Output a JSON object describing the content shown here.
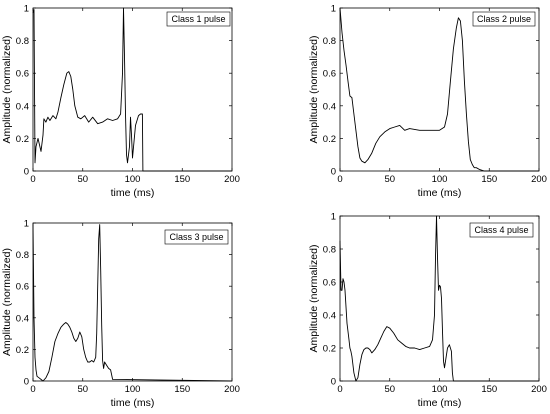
{
  "chart_data": [
    {
      "type": "line",
      "legend": "Class 1 pulse",
      "xlabel": "time (ms)",
      "ylabel": "Amplitude (normalized)",
      "xlim": [
        0,
        200
      ],
      "ylim": [
        0,
        1
      ],
      "xticks": [
        "0",
        "50",
        "100",
        "150",
        "200"
      ],
      "yticks": [
        "0",
        "0.2",
        "0.4",
        "0.6",
        "0.8",
        "1"
      ],
      "x": [
        0,
        1,
        2,
        3,
        5,
        8,
        10,
        11,
        13,
        15,
        17,
        20,
        23,
        25,
        28,
        31,
        34,
        36,
        38,
        40,
        42,
        45,
        48,
        52,
        56,
        60,
        65,
        70,
        75,
        80,
        85,
        88,
        90,
        91,
        92,
        93,
        94,
        95,
        97,
        98,
        99,
        100,
        103,
        106,
        108,
        110,
        110.5,
        200
      ],
      "y": [
        0.97,
        0.99,
        0.05,
        0.15,
        0.2,
        0.12,
        0.22,
        0.32,
        0.3,
        0.33,
        0.31,
        0.34,
        0.32,
        0.36,
        0.45,
        0.53,
        0.6,
        0.61,
        0.58,
        0.5,
        0.4,
        0.33,
        0.32,
        0.34,
        0.3,
        0.33,
        0.29,
        0.3,
        0.32,
        0.31,
        0.32,
        0.35,
        0.6,
        1.0,
        0.7,
        0.35,
        0.1,
        0.05,
        0.15,
        0.33,
        0.22,
        0.08,
        0.28,
        0.34,
        0.35,
        0.35,
        0.0,
        0.0
      ]
    },
    {
      "type": "line",
      "legend": "Class 2 pulse",
      "xlabel": "time (ms)",
      "ylabel": "Amplitude (normalized)",
      "xlim": [
        0,
        200
      ],
      "ylim": [
        0,
        1
      ],
      "xticks": [
        "0",
        "50",
        "100",
        "150",
        "200"
      ],
      "yticks": [
        "0",
        "0.2",
        "0.4",
        "0.6",
        "0.8",
        "1"
      ],
      "x": [
        0,
        2,
        4,
        6,
        8,
        10,
        12,
        14,
        16,
        18,
        20,
        22,
        25,
        28,
        32,
        36,
        40,
        45,
        50,
        55,
        60,
        65,
        70,
        80,
        90,
        100,
        105,
        108,
        111,
        114,
        117,
        119,
        121,
        123,
        125,
        127,
        129,
        131,
        133,
        135,
        137,
        140,
        145,
        150,
        200
      ],
      "y": [
        1.0,
        0.85,
        0.74,
        0.65,
        0.55,
        0.46,
        0.45,
        0.35,
        0.25,
        0.15,
        0.08,
        0.06,
        0.05,
        0.07,
        0.11,
        0.17,
        0.21,
        0.24,
        0.26,
        0.27,
        0.28,
        0.25,
        0.26,
        0.25,
        0.25,
        0.25,
        0.27,
        0.35,
        0.55,
        0.75,
        0.88,
        0.94,
        0.92,
        0.8,
        0.55,
        0.35,
        0.18,
        0.07,
        0.04,
        0.02,
        0.02,
        0.01,
        0.0,
        0.0,
        0.0
      ]
    },
    {
      "type": "line",
      "legend": "Class 3 pulse",
      "xlabel": "time (ms)",
      "ylabel": "Amplitude (normalized)",
      "xlim": [
        0,
        200
      ],
      "ylim": [
        0,
        1
      ],
      "xticks": [
        "0",
        "50",
        "100",
        "150",
        "200"
      ],
      "yticks": [
        "0",
        "0.2",
        "0.4",
        "0.6",
        "0.8",
        "1"
      ],
      "x": [
        0,
        1,
        2,
        3,
        4,
        6,
        8,
        10,
        13,
        16,
        19,
        22,
        25,
        28,
        31,
        33,
        35,
        37,
        39,
        41,
        43,
        45,
        47,
        49,
        51,
        53,
        55,
        57,
        59,
        61,
        63,
        64,
        65,
        66,
        67,
        68,
        69,
        70,
        71,
        72,
        74,
        76,
        78,
        80,
        200
      ],
      "y": [
        0.99,
        0.4,
        0.15,
        0.07,
        0.03,
        0.02,
        0.01,
        0.0,
        0.02,
        0.06,
        0.15,
        0.25,
        0.3,
        0.34,
        0.36,
        0.37,
        0.36,
        0.34,
        0.31,
        0.27,
        0.25,
        0.27,
        0.31,
        0.28,
        0.2,
        0.15,
        0.12,
        0.12,
        0.13,
        0.12,
        0.15,
        0.3,
        0.6,
        0.9,
        0.99,
        0.7,
        0.35,
        0.13,
        0.08,
        0.12,
        0.1,
        0.08,
        0.07,
        0.01,
        0.0
      ]
    },
    {
      "type": "line",
      "legend": "Class 4 pulse",
      "xlabel": "time (ms)",
      "ylabel": "Amplitude (normalized)",
      "xlim": [
        0,
        200
      ],
      "ylim": [
        0,
        1
      ],
      "xticks": [
        "0",
        "50",
        "100",
        "150",
        "200"
      ],
      "yticks": [
        "0",
        "0.2",
        "0.4",
        "0.6",
        "0.8",
        "1"
      ],
      "x": [
        0,
        1,
        2,
        3,
        4,
        5,
        6,
        7,
        8,
        9,
        10,
        11,
        12,
        13,
        14,
        16,
        18,
        20,
        22,
        24,
        26,
        28,
        30,
        32,
        35,
        38,
        41,
        44,
        47,
        50,
        54,
        58,
        62,
        66,
        70,
        75,
        80,
        85,
        90,
        93,
        95,
        96,
        97,
        98,
        99,
        100,
        101,
        102,
        103,
        104,
        105,
        106,
        108,
        110,
        112,
        113,
        114,
        200
      ],
      "y": [
        0.85,
        0.55,
        0.55,
        0.62,
        0.6,
        0.55,
        0.45,
        0.35,
        0.3,
        0.25,
        0.2,
        0.18,
        0.15,
        0.1,
        0.05,
        0.0,
        0.02,
        0.1,
        0.16,
        0.19,
        0.2,
        0.2,
        0.19,
        0.17,
        0.19,
        0.22,
        0.26,
        0.3,
        0.33,
        0.32,
        0.29,
        0.25,
        0.23,
        0.21,
        0.2,
        0.2,
        0.19,
        0.2,
        0.21,
        0.25,
        0.4,
        0.75,
        1.0,
        0.75,
        0.55,
        0.58,
        0.57,
        0.5,
        0.3,
        0.12,
        0.08,
        0.12,
        0.2,
        0.22,
        0.18,
        0.05,
        0.0,
        0.0
      ]
    }
  ]
}
